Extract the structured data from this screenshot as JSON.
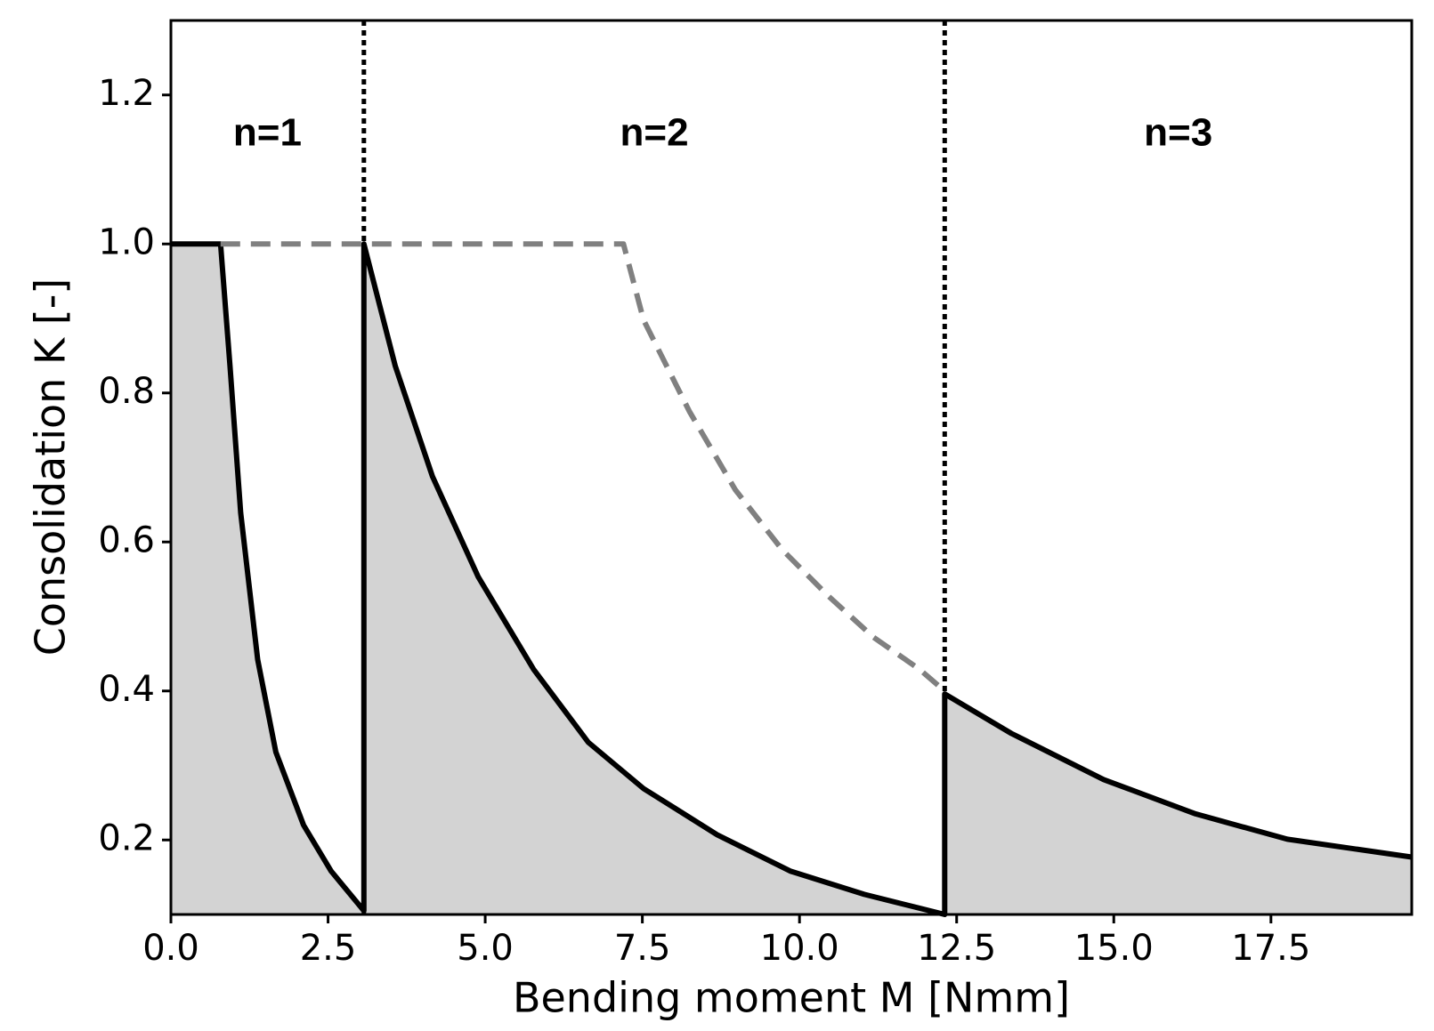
{
  "chart_data": {
    "type": "line",
    "xlabel": "Bending moment M [Nmm]",
    "ylabel": "Consolidation K [-]",
    "xlim": [
      0,
      19.74
    ],
    "ylim": [
      0.1,
      1.3
    ],
    "xticks": [
      {
        "value": 0,
        "label": "0.0"
      },
      2.5,
      {
        "value": 5,
        "label": "5.0"
      },
      7.5,
      {
        "value": 10,
        "label": "10.0"
      },
      12.5,
      {
        "value": 15,
        "label": "15.0"
      },
      17.5
    ],
    "yticks": [
      0.2,
      0.4,
      0.6,
      0.8,
      {
        "value": 1,
        "label": "1.0"
      },
      1.2
    ],
    "grid": false,
    "series": [
      {
        "color": "#000000",
        "fill": "#d3d3d3",
        "style": "solid",
        "x": [
          0,
          0.79,
          0.94,
          1.11,
          1.38,
          1.67,
          2.11,
          2.55,
          3.07,
          3.07,
          3.57,
          4.16,
          4.89,
          5.77,
          6.64,
          7.52,
          8.69,
          9.86,
          11.03,
          12.31,
          12.31,
          13.37,
          14.84,
          16.3,
          17.76,
          19.74
        ],
        "values": [
          1.0,
          1.0,
          0.836,
          0.639,
          0.442,
          0.318,
          0.22,
          0.158,
          0.105,
          1.0,
          0.836,
          0.688,
          0.553,
          0.429,
          0.331,
          0.269,
          0.207,
          0.158,
          0.127,
          0.1,
          0.396,
          0.343,
          0.281,
          0.235,
          0.201,
          0.177
        ]
      },
      {
        "color": "#808080",
        "style": "dashed",
        "x": [
          0.79,
          7.2,
          7.52,
          8.25,
          8.98,
          9.72,
          10.45,
          11.18,
          11.91,
          12.31
        ],
        "values": [
          1.0,
          1.0,
          0.898,
          0.775,
          0.67,
          0.59,
          0.528,
          0.472,
          0.429,
          0.4
        ]
      }
    ],
    "vlines": [
      3.07,
      12.31
    ],
    "annotations": [
      "n=1",
      "n=2",
      "n=3"
    ]
  }
}
